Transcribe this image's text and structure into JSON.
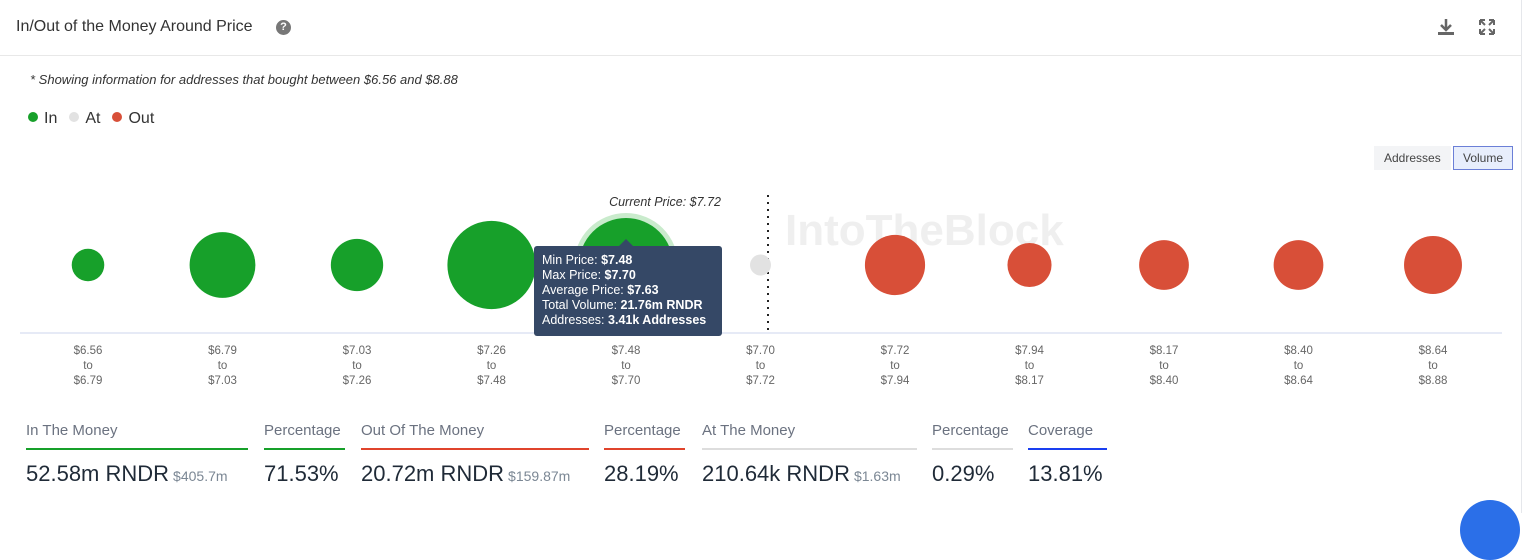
{
  "header": {
    "title": "In/Out of the Money Around Price",
    "help_icon": "?",
    "download_icon": "download-icon",
    "expand_icon": "expand-icon"
  },
  "note": "* Showing information for addresses that bought between $6.56 and $8.88",
  "legend": [
    {
      "label": "In",
      "color": "#17a02a"
    },
    {
      "label": "At",
      "color": "#e2e2e2"
    },
    {
      "label": "Out",
      "color": "#d84f38"
    }
  ],
  "toggles": {
    "addresses": "Addresses",
    "volume": "Volume",
    "active": "Volume"
  },
  "watermark": "IntoTheBlock",
  "chart_data": {
    "type": "bubble",
    "current_price_label": "Current Price: $7.72",
    "ranges": [
      {
        "from": "$6.56",
        "to": "$6.79",
        "status": "in",
        "relative_volume": 0.12
      },
      {
        "from": "$6.79",
        "to": "$7.03",
        "status": "in",
        "relative_volume": 0.49
      },
      {
        "from": "$7.03",
        "to": "$7.26",
        "status": "in",
        "relative_volume": 0.31
      },
      {
        "from": "$7.26",
        "to": "$7.48",
        "status": "in",
        "relative_volume": 0.88
      },
      {
        "from": "$7.48",
        "to": "$7.70",
        "status": "in",
        "relative_volume": 1.0
      },
      {
        "from": "$7.70",
        "to": "$7.72",
        "status": "at",
        "relative_volume": 0.05
      },
      {
        "from": "$7.72",
        "to": "$7.94",
        "status": "out",
        "relative_volume": 0.41
      },
      {
        "from": "$7.94",
        "to": "$8.17",
        "status": "out",
        "relative_volume": 0.22
      },
      {
        "from": "$8.17",
        "to": "$8.40",
        "status": "out",
        "relative_volume": 0.28
      },
      {
        "from": "$8.40",
        "to": "$8.64",
        "status": "out",
        "relative_volume": 0.28
      },
      {
        "from": "$8.64",
        "to": "$8.88",
        "status": "out",
        "relative_volume": 0.38
      }
    ],
    "to_word": "to",
    "highlighted_index": 4
  },
  "tooltip": {
    "min_label": "Min Price:",
    "min": "$7.48",
    "max_label": "Max Price:",
    "max": "$7.70",
    "avg_label": "Average Price:",
    "avg": "$7.63",
    "vol_label": "Total Volume:",
    "vol": "21.76m RNDR",
    "addr_label": "Addresses:",
    "addr": "3.41k Addresses"
  },
  "stats": [
    {
      "label": "In The Money",
      "value": "52.58m RNDR",
      "sub": "$405.7m",
      "color": "#17a02a"
    },
    {
      "label": "Percentage",
      "value": "71.53%",
      "color": "#17a02a"
    },
    {
      "label": "Out Of The Money",
      "value": "20.72m RNDR",
      "sub": "$159.87m",
      "color": "#e0442c"
    },
    {
      "label": "Percentage",
      "value": "28.19%",
      "color": "#e0442c"
    },
    {
      "label": "At The Money",
      "value": "210.64k RNDR",
      "sub": "$1.63m",
      "color": "#dddddd"
    },
    {
      "label": "Percentage",
      "value": "0.29%",
      "color": "#dddddd"
    },
    {
      "label": "Coverage",
      "value": "13.81%",
      "color": "#1a3ff0"
    }
  ]
}
